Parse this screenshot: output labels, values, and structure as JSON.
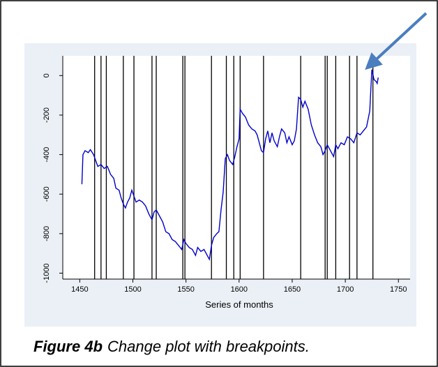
{
  "chart_data": {
    "type": "line",
    "x_label": "Series of months",
    "xlim": [
      1434,
      1761
    ],
    "xticks": [
      1450,
      1500,
      1550,
      1600,
      1650,
      1700,
      1750
    ],
    "ylim": [
      -1030,
      100
    ],
    "yticks": [
      -1000,
      -800,
      -600,
      -400,
      -200,
      0
    ],
    "breakpoints": [
      1464,
      1470,
      1475,
      1491,
      1501,
      1518,
      1522,
      1547,
      1549,
      1574,
      1588,
      1595,
      1601,
      1623,
      1658,
      1681,
      1683,
      1691,
      1704,
      1711,
      1726
    ],
    "x": [
      1452,
      1453,
      1455,
      1458,
      1460,
      1463,
      1465,
      1467,
      1470,
      1473,
      1476,
      1479,
      1482,
      1484,
      1487,
      1489,
      1491,
      1493,
      1495,
      1497,
      1499,
      1501,
      1503,
      1506,
      1509,
      1512,
      1515,
      1518,
      1520,
      1522,
      1525,
      1528,
      1531,
      1534,
      1537,
      1540,
      1543,
      1546,
      1548,
      1550,
      1553,
      1556,
      1559,
      1561,
      1564,
      1567,
      1570,
      1572,
      1574,
      1576,
      1579,
      1581,
      1583,
      1585,
      1587,
      1589,
      1591,
      1594,
      1596,
      1598,
      1600,
      1601,
      1603,
      1606,
      1609,
      1612,
      1615,
      1617,
      1619,
      1621,
      1623,
      1625,
      1627,
      1629,
      1631,
      1633,
      1636,
      1638,
      1640,
      1643,
      1645,
      1647,
      1650,
      1652,
      1654,
      1656,
      1658,
      1660,
      1662,
      1665,
      1668,
      1671,
      1674,
      1677,
      1679,
      1681,
      1683,
      1685,
      1687,
      1689,
      1691,
      1693,
      1696,
      1699,
      1702,
      1705,
      1708,
      1711,
      1714,
      1717,
      1720,
      1723,
      1725,
      1727,
      1729,
      1730,
      1731
    ],
    "series": [
      {
        "color": "#0000cc",
        "values": [
          -550,
          -400,
          -380,
          -390,
          -375,
          -400,
          -430,
          -460,
          -450,
          -470,
          -460,
          -500,
          -520,
          -570,
          -580,
          -620,
          -650,
          -670,
          -640,
          -620,
          -580,
          -610,
          -640,
          -630,
          -640,
          -660,
          -700,
          -730,
          -690,
          -680,
          -710,
          -740,
          -790,
          -800,
          -830,
          -840,
          -860,
          -880,
          -830,
          -850,
          -870,
          -880,
          -910,
          -870,
          -890,
          -880,
          -910,
          -930,
          -860,
          -820,
          -800,
          -790,
          -680,
          -590,
          -420,
          -400,
          -430,
          -450,
          -410,
          -360,
          -320,
          -170,
          -190,
          -210,
          -250,
          -270,
          -280,
          -300,
          -340,
          -380,
          -390,
          -320,
          -280,
          -340,
          -290,
          -330,
          -360,
          -310,
          -270,
          -290,
          -340,
          -310,
          -350,
          -330,
          -270,
          -110,
          -120,
          -160,
          -130,
          -170,
          -250,
          -300,
          -340,
          -360,
          -400,
          -380,
          -350,
          -370,
          -390,
          -410,
          -350,
          -370,
          -340,
          -350,
          -310,
          -320,
          -340,
          -290,
          -300,
          -280,
          -260,
          -180,
          30,
          -20,
          -30,
          -40,
          -10
        ]
      }
    ]
  },
  "caption": {
    "label": "Figure 4b",
    "text": "Change plot with breakpoints."
  }
}
